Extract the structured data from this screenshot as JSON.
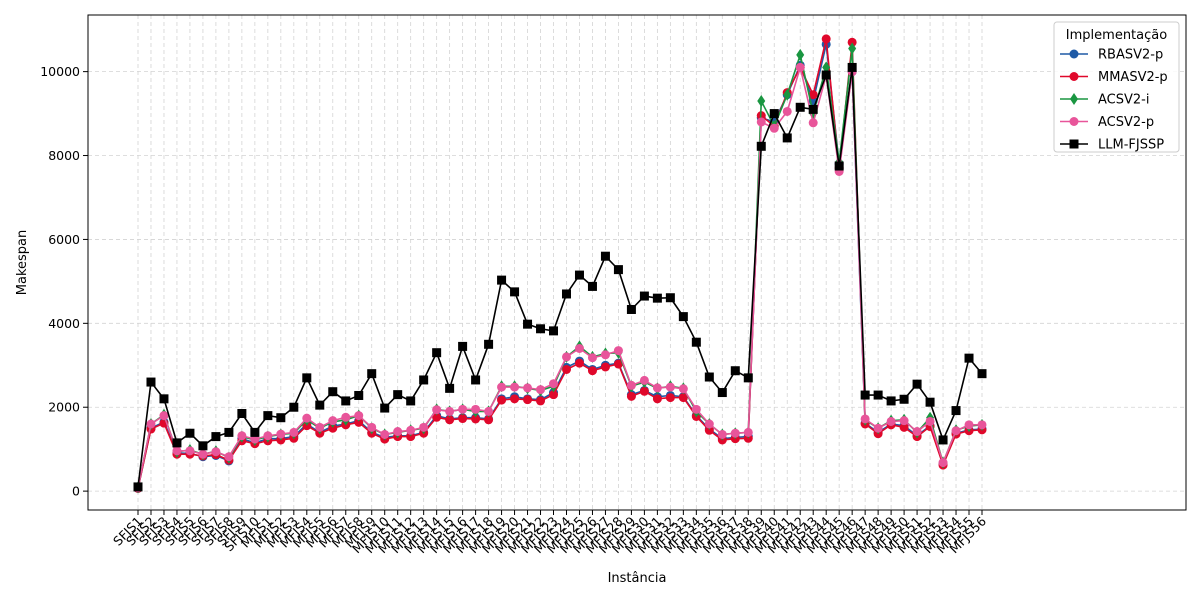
{
  "chart_data": {
    "type": "line",
    "xlabel": "Instância",
    "ylabel": "Makespan",
    "ylim": [
      -450,
      11350
    ],
    "yticks": [
      0,
      2000,
      4000,
      6000,
      8000,
      10000
    ],
    "grid": true,
    "legend_title": "Implementação",
    "legend_position": "top-right",
    "categories": [
      "SFJS1",
      "SFJS2",
      "SFJS3",
      "SFJS4",
      "SFJS5",
      "SFJS6",
      "SFJS7",
      "SFJS8",
      "SFJS9",
      "SFJS10",
      "MFJS1",
      "MFJS2",
      "MFJS3",
      "MFJS4",
      "MFJS5",
      "MFJS6",
      "MFJS7",
      "MFJS8",
      "MFJS9",
      "MFJS10",
      "MFJS11",
      "MFJS12",
      "MFJS13",
      "MFJS14",
      "MFJS15",
      "MFJS16",
      "MFJS17",
      "MFJS18",
      "MFJS19",
      "MFJS20",
      "MFJS21",
      "MFJS22",
      "MFJS23",
      "MFJS24",
      "MFJS25",
      "MFJS26",
      "MFJS27",
      "MFJS28",
      "MFJS29",
      "MFJS30",
      "MFJS31",
      "MFJS32",
      "MFJS33",
      "MFJS34",
      "MFJS35",
      "MFJS36",
      "MFJS37",
      "MFJS38",
      "MFJS39",
      "MFJS40",
      "MFJS41",
      "MFJS42",
      "MFJS43",
      "MFJS44",
      "MFJS45",
      "MFJS46",
      "MFJS47",
      "MFJS48",
      "MFJS49",
      "MFJS50",
      "MFJS51",
      "MFJS52",
      "MFJS53",
      "MFJS54",
      "MFJS55",
      "MFJS56"
    ],
    "series": [
      {
        "name": "RBASV2-p",
        "color": "#1f5aa6",
        "marker": "circle",
        "values": [
          66,
          1500,
          1650,
          910,
          900,
          820,
          850,
          720,
          1250,
          1150,
          1250,
          1250,
          1300,
          1600,
          1400,
          1550,
          1600,
          1680,
          1400,
          1280,
          1320,
          1320,
          1400,
          1800,
          1720,
          1750,
          1750,
          1720,
          2200,
          2250,
          2200,
          2180,
          2350,
          2950,
          3100,
          2900,
          3000,
          3050,
          2300,
          2400,
          2250,
          2280,
          2250,
          1800,
          1480,
          1250,
          1280,
          1300,
          8900,
          8800,
          9450,
          10150,
          9300,
          10650,
          7800,
          10000,
          1620,
          1400,
          1600,
          1560,
          1320,
          1560,
          650,
          1380,
          1460,
          1480
        ]
      },
      {
        "name": "MMASV2-p",
        "color": "#e0082b",
        "marker": "circle",
        "values": [
          66,
          1480,
          1620,
          880,
          880,
          840,
          870,
          740,
          1200,
          1130,
          1200,
          1220,
          1260,
          1560,
          1380,
          1500,
          1580,
          1640,
          1380,
          1240,
          1300,
          1300,
          1380,
          1760,
          1700,
          1730,
          1720,
          1700,
          2170,
          2200,
          2180,
          2150,
          2300,
          2900,
          3050,
          2870,
          2960,
          3030,
          2260,
          2380,
          2200,
          2230,
          2230,
          1780,
          1450,
          1220,
          1250,
          1260,
          8950,
          8700,
          9500,
          10100,
          9450,
          10780,
          7700,
          10700,
          1600,
          1370,
          1580,
          1520,
          1300,
          1540,
          620,
          1360,
          1440,
          1460
        ]
      },
      {
        "name": "ACSV2-i",
        "color": "#1a9641",
        "marker": "diamond",
        "values": [
          90,
          1600,
          1820,
          940,
          980,
          880,
          950,
          800,
          1300,
          1220,
          1300,
          1350,
          1380,
          1700,
          1500,
          1650,
          1700,
          1800,
          1500,
          1350,
          1400,
          1450,
          1500,
          1950,
          1900,
          1950,
          1900,
          1900,
          2500,
          2500,
          2450,
          2400,
          2500,
          3200,
          3450,
          3200,
          3280,
          3300,
          2500,
          2600,
          2450,
          2500,
          2450,
          1900,
          1600,
          1350,
          1380,
          1400,
          9300,
          8700,
          9450,
          10400,
          9000,
          10100,
          7850,
          10550,
          1700,
          1500,
          1680,
          1700,
          1400,
          1750,
          680,
          1450,
          1550,
          1580
        ]
      },
      {
        "name": "ACSV2-p",
        "color": "#e8559a",
        "marker": "circle",
        "values": [
          80,
          1600,
          1800,
          960,
          960,
          880,
          940,
          820,
          1320,
          1240,
          1320,
          1360,
          1400,
          1740,
          1520,
          1680,
          1760,
          1800,
          1520,
          1350,
          1420,
          1450,
          1520,
          1940,
          1900,
          1950,
          1950,
          1900,
          2480,
          2480,
          2460,
          2420,
          2560,
          3200,
          3400,
          3180,
          3250,
          3350,
          2520,
          2640,
          2460,
          2480,
          2440,
          1950,
          1600,
          1350,
          1380,
          1400,
          8800,
          8650,
          9050,
          10100,
          8780,
          9900,
          7620,
          10000,
          1720,
          1500,
          1660,
          1680,
          1420,
          1660,
          680,
          1440,
          1580,
          1580
        ]
      },
      {
        "name": "LLM-FJSSP",
        "color": "#000000",
        "marker": "square",
        "values": [
          100,
          2600,
          2200,
          1150,
          1380,
          1080,
          1300,
          1400,
          1850,
          1400,
          1800,
          1750,
          2000,
          2700,
          2050,
          2370,
          2150,
          2280,
          2800,
          1980,
          2300,
          2150,
          2650,
          3300,
          2450,
          3450,
          2650,
          3500,
          5030,
          4750,
          3980,
          3870,
          3820,
          4700,
          5150,
          4880,
          5600,
          5280,
          4330,
          4650,
          4600,
          4610,
          4160,
          3550,
          2720,
          2350,
          2870,
          2700,
          8220,
          9000,
          8420,
          9150,
          9100,
          9920,
          7750,
          10100,
          2290,
          2290,
          2150,
          2190,
          2550,
          2120,
          1220,
          1920,
          3170,
          2800
        ]
      }
    ]
  }
}
